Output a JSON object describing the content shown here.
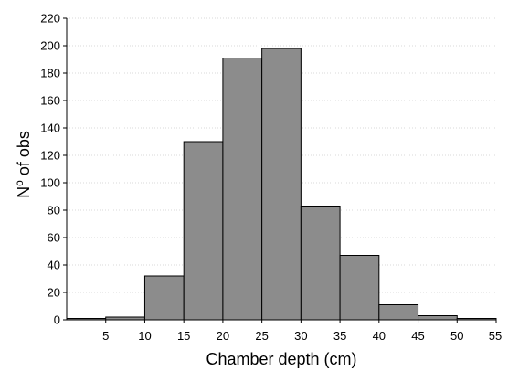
{
  "chart_data": {
    "type": "bar",
    "subtype": "histogram",
    "title": "",
    "xlabel": "Chamber depth (cm)",
    "ylabel": {
      "prefix": "N",
      "superscript": "o",
      "suffix": " of obs"
    },
    "bins": [
      {
        "from": 0,
        "to": 5,
        "count": 1
      },
      {
        "from": 5,
        "to": 10,
        "count": 2
      },
      {
        "from": 10,
        "to": 15,
        "count": 32
      },
      {
        "from": 15,
        "to": 20,
        "count": 130
      },
      {
        "from": 20,
        "to": 25,
        "count": 191
      },
      {
        "from": 25,
        "to": 30,
        "count": 198
      },
      {
        "from": 30,
        "to": 35,
        "count": 83
      },
      {
        "from": 35,
        "to": 40,
        "count": 47
      },
      {
        "from": 40,
        "to": 45,
        "count": 11
      },
      {
        "from": 45,
        "to": 50,
        "count": 3
      },
      {
        "from": 50,
        "to": 55,
        "count": 1
      }
    ],
    "xlim": [
      0,
      55
    ],
    "ylim": [
      0,
      220
    ],
    "xticks": [
      "5",
      "10",
      "15",
      "20",
      "25",
      "30",
      "35",
      "40",
      "45",
      "50",
      "55"
    ],
    "yticks": [
      "0",
      "20",
      "40",
      "60",
      "80",
      "100",
      "120",
      "140",
      "160",
      "180",
      "200",
      "220"
    ],
    "grid": "horizontal",
    "colors": {
      "bar_fill": "#8c8c8c",
      "bar_stroke": "#000000",
      "grid": "#d9d9d9",
      "axis": "#000000"
    }
  }
}
